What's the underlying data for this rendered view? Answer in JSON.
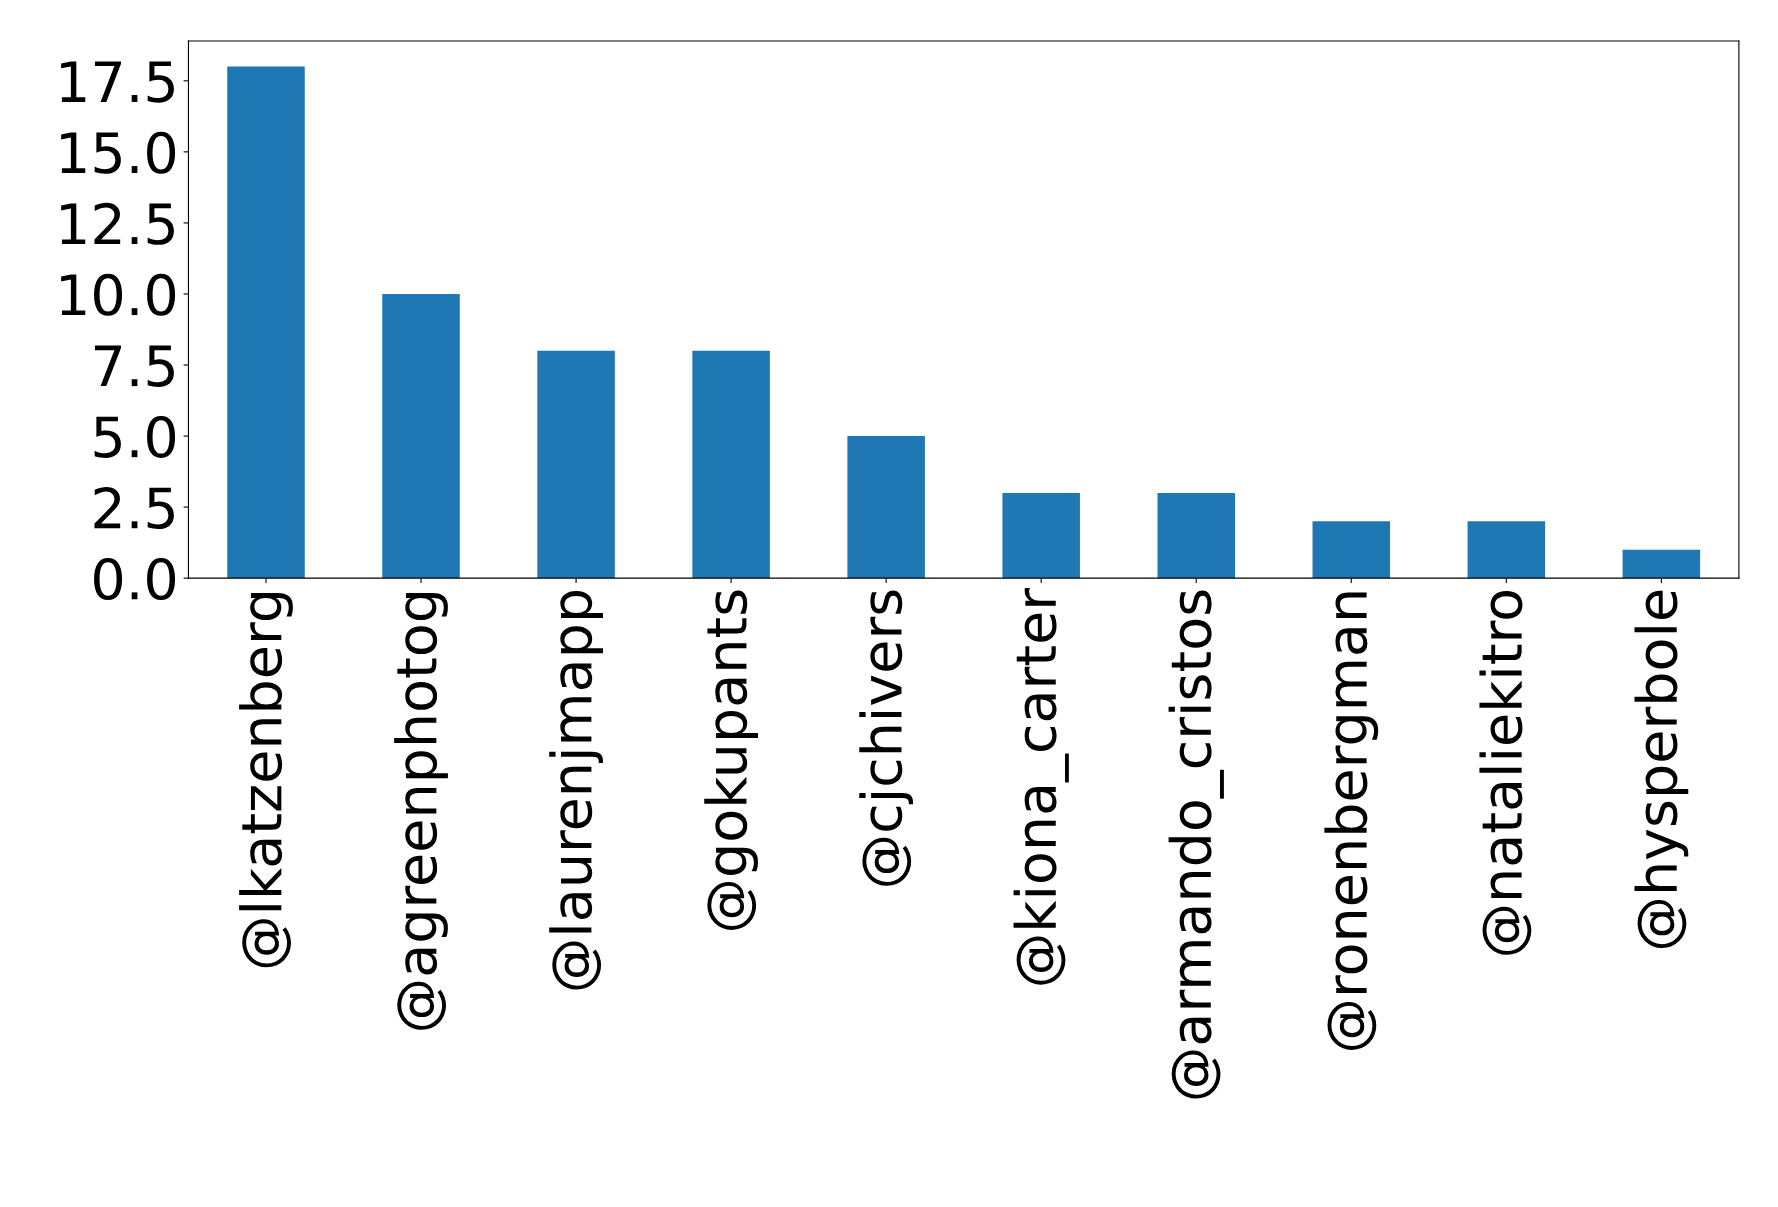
{
  "chart_data": {
    "type": "bar",
    "categories": [
      "@lkatzenberg",
      "@agreenphotog",
      "@laurenjmapp",
      "@gokupants",
      "@cjchivers",
      "@kiona_carter",
      "@armando_cristos",
      "@ronenbergman",
      "@nataliekitro",
      "@hysperbole"
    ],
    "values": [
      18,
      10,
      8,
      8,
      5,
      3,
      3,
      2,
      2,
      1
    ],
    "color": "#1f77b4",
    "ylim": [
      0,
      18.9
    ],
    "yticks": [
      {
        "value": 0,
        "label": "0.0"
      },
      {
        "value": 2.5,
        "label": "2.5"
      },
      {
        "value": 5,
        "label": "5.0"
      },
      {
        "value": 7.5,
        "label": "7.5"
      },
      {
        "value": 10,
        "label": "10.0"
      },
      {
        "value": 12.5,
        "label": "12.5"
      },
      {
        "value": 15,
        "label": "15.0"
      },
      {
        "value": 17.5,
        "label": "17.5"
      }
    ],
    "grid": false
  }
}
